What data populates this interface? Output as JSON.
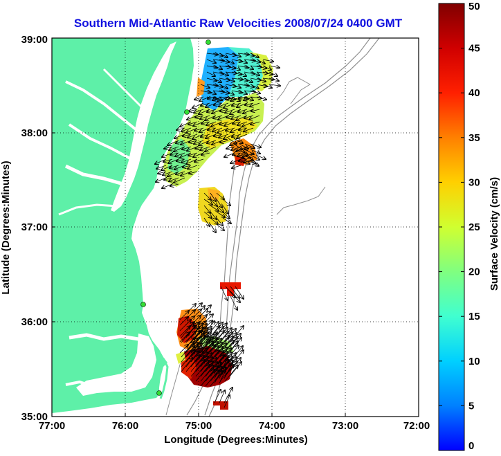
{
  "title": "Southern Mid-Atlantic Raw Velocities 2008/07/24 0400 GMT",
  "x_axis": {
    "label": "Longitude (Degrees:Minutes)",
    "ticks": [
      "77:00",
      "76:00",
      "75:00",
      "74:00",
      "73:00",
      "72:00"
    ]
  },
  "y_axis": {
    "label": "Latitude (Degrees:Minutes)",
    "ticks": [
      "35:00",
      "36:00",
      "37:00",
      "38:00",
      "39:00"
    ]
  },
  "colorbar": {
    "label": "Surface Velocity (cm/s)",
    "ticks": [
      "0",
      "5",
      "10",
      "15",
      "20",
      "25",
      "30",
      "35",
      "40",
      "45",
      "50"
    ],
    "min": 0,
    "max": 50,
    "colormap": "jet"
  },
  "colors": {
    "land": "#5ef0a8",
    "water": "#ffffff",
    "bathymetry": "#909090",
    "stations": "#33dd33",
    "title": "#1010e0"
  },
  "grid": "dotted"
}
